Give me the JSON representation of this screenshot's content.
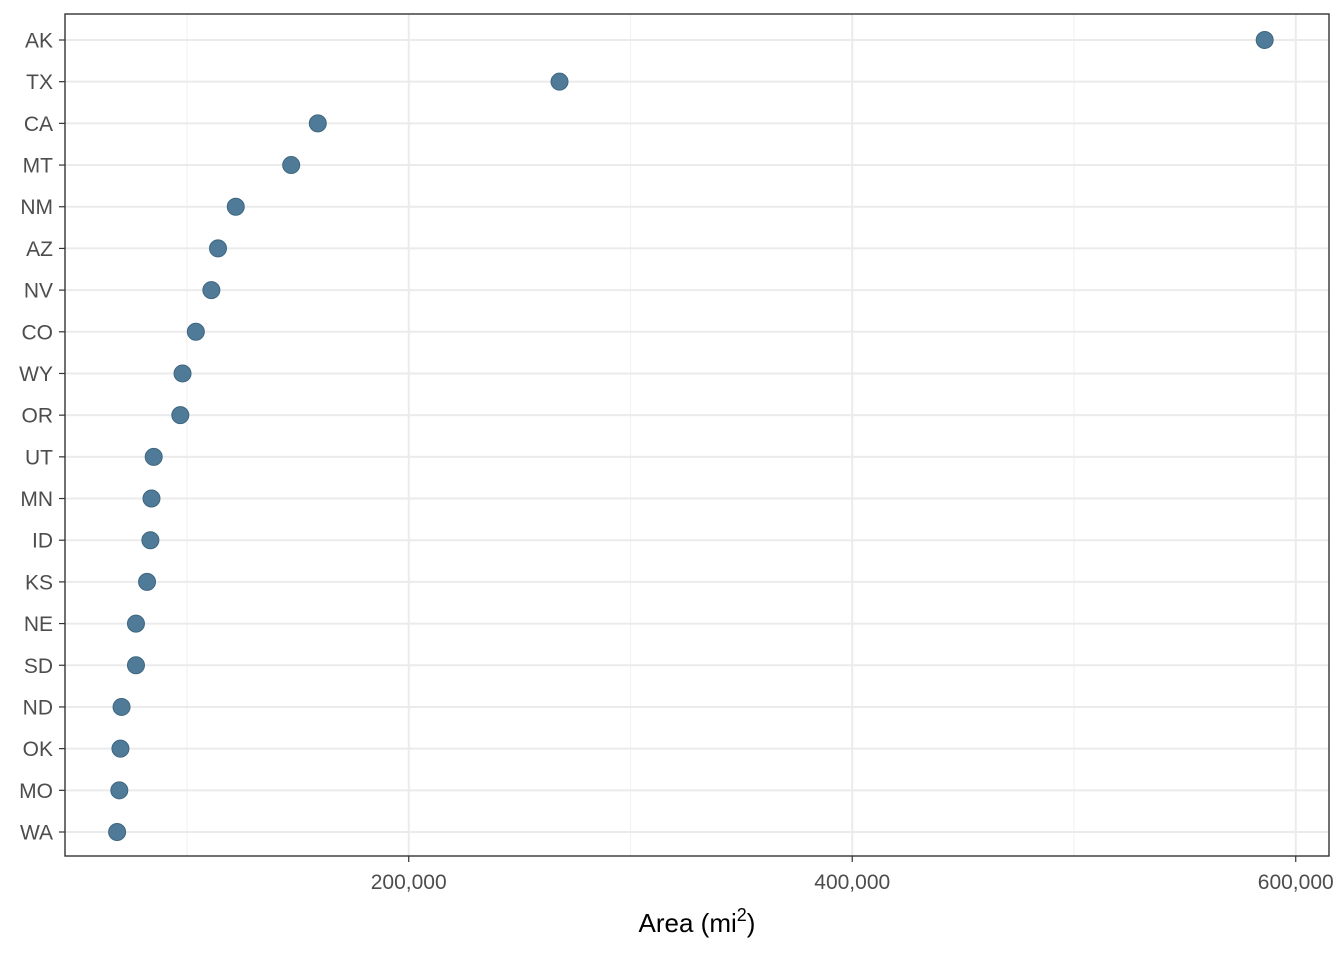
{
  "chart_data": {
    "type": "scatter",
    "title": "",
    "xlabel": "Area (mi",
    "xlabel_superscript": "2",
    "xlabel_suffix": ")",
    "ylabel": "",
    "xlim": [
      45000,
      615000
    ],
    "x_ticks": [
      200000,
      400000,
      600000
    ],
    "x_tick_labels": [
      "200,000",
      "400,000",
      "600,000"
    ],
    "x_minor_ticks": [
      100000,
      300000,
      500000
    ],
    "grid": true,
    "legend": "none",
    "point_color": "#4f7b98",
    "point_edge_color": "#3f6680",
    "points": [
      {
        "state": "AK",
        "area": 586000
      },
      {
        "state": "TX",
        "area": 268000
      },
      {
        "state": "CA",
        "area": 159000
      },
      {
        "state": "MT",
        "area": 147000
      },
      {
        "state": "NM",
        "area": 122000
      },
      {
        "state": "AZ",
        "area": 114000
      },
      {
        "state": "NV",
        "area": 111000
      },
      {
        "state": "CO",
        "area": 104000
      },
      {
        "state": "WY",
        "area": 98000
      },
      {
        "state": "OR",
        "area": 97000
      },
      {
        "state": "UT",
        "area": 85000
      },
      {
        "state": "MN",
        "area": 84000
      },
      {
        "state": "ID",
        "area": 83500
      },
      {
        "state": "KS",
        "area": 82000
      },
      {
        "state": "NE",
        "area": 77000
      },
      {
        "state": "SD",
        "area": 77000
      },
      {
        "state": "ND",
        "area": 70500
      },
      {
        "state": "OK",
        "area": 70000
      },
      {
        "state": "MO",
        "area": 69500
      },
      {
        "state": "WA",
        "area": 68500
      }
    ]
  }
}
